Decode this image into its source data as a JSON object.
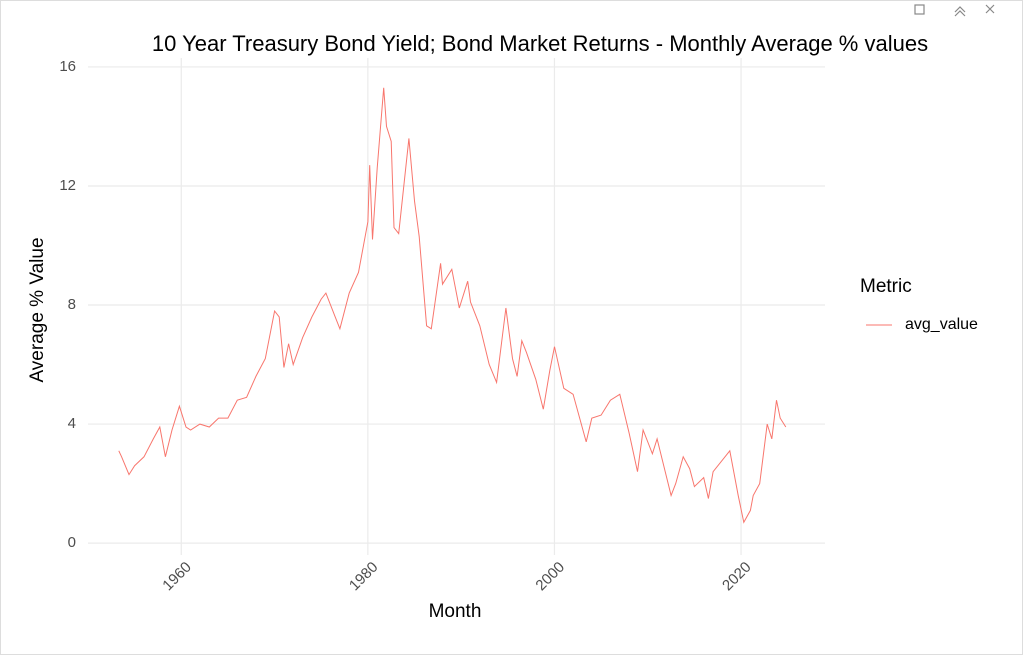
{
  "chart_data": {
    "type": "line",
    "title": "10 Year Treasury Bond Yield; Bond Market Returns - Monthly Average % values",
    "x_label": "Month",
    "y_label": "Average % Value",
    "legend_title": "Metric",
    "x": [
      1953.3,
      1953.6,
      1954.4,
      1955,
      1956,
      1957,
      1957.7,
      1958.3,
      1959,
      1959.8,
      1960.5,
      1961,
      1962,
      1963,
      1964,
      1965,
      1966,
      1967,
      1968,
      1969,
      1970,
      1970.5,
      1971,
      1971.5,
      1972,
      1973,
      1974,
      1975,
      1975.5,
      1976.5,
      1977,
      1978,
      1979,
      1980,
      1980.2,
      1980.5,
      1981,
      1981.7,
      1982,
      1982.5,
      1982.8,
      1983.3,
      1984.4,
      1985,
      1985.5,
      1986.3,
      1986.8,
      1987.8,
      1988,
      1989,
      1989.8,
      1990.7,
      1991,
      1992,
      1993,
      1993.8,
      1994.8,
      1995.5,
      1996,
      1996.5,
      1997,
      1998,
      1998.8,
      1999.5,
      2000,
      2001,
      2002,
      2003.4,
      2004,
      2005,
      2006,
      2007,
      2008,
      2008.9,
      2009.5,
      2010.5,
      2011,
      2012.5,
      2013,
      2013.8,
      2014.5,
      2015,
      2016,
      2016.5,
      2017,
      2018.8,
      2019.7,
      2020.3,
      2021,
      2021.3,
      2022,
      2022.8,
      2023.3,
      2023.8,
      2024.2,
      2024.8
    ],
    "series": [
      {
        "name": "avg_value",
        "color": "#F8766D",
        "values": [
          3.1,
          2.9,
          2.3,
          2.6,
          2.9,
          3.5,
          3.9,
          2.9,
          3.8,
          4.6,
          3.9,
          3.8,
          4.0,
          3.9,
          4.2,
          4.2,
          4.8,
          4.9,
          5.6,
          6.2,
          7.8,
          7.6,
          5.9,
          6.7,
          6.0,
          6.9,
          7.6,
          8.2,
          8.4,
          7.6,
          7.2,
          8.4,
          9.1,
          10.8,
          12.7,
          10.2,
          12.6,
          15.3,
          14.0,
          13.5,
          10.6,
          10.4,
          13.6,
          11.5,
          10.3,
          7.3,
          7.2,
          9.4,
          8.7,
          9.2,
          7.9,
          8.8,
          8.1,
          7.3,
          6.0,
          5.4,
          7.9,
          6.2,
          5.6,
          6.8,
          6.4,
          5.5,
          4.5,
          5.8,
          6.6,
          5.2,
          5.0,
          3.4,
          4.2,
          4.3,
          4.8,
          5.0,
          3.7,
          2.4,
          3.8,
          3.0,
          3.5,
          1.6,
          2.0,
          2.9,
          2.5,
          1.9,
          2.2,
          1.5,
          2.4,
          3.1,
          1.6,
          0.7,
          1.1,
          1.6,
          2.0,
          4.0,
          3.5,
          4.8,
          4.2,
          3.9
        ]
      }
    ],
    "xlim": [
      1950,
      2029
    ],
    "xticks": [
      1960,
      1980,
      2000,
      2020
    ],
    "ylim": [
      -0.4,
      16.3
    ],
    "yticks": [
      0,
      4,
      8,
      12,
      16
    ],
    "grid": true
  }
}
